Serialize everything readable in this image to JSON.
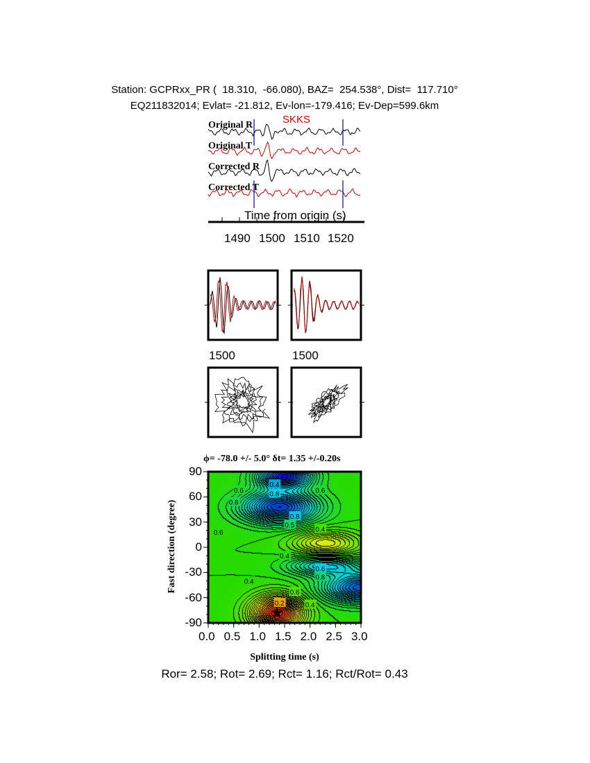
{
  "header": {
    "line1": "Station: GCPRxx_PR (  18.310,  -66.080), BAZ=  254.538°, Dist=  117.710°",
    "line2": "EQ211832014; Evlat= -21.812, Ev-lon=-179.416; Ev-Dep=599.6km"
  },
  "chart_data": [
    {
      "type": "line",
      "title": "SKKS",
      "xlabel": "Time from origin (s)",
      "xlim": [
        1481,
        1525
      ],
      "xticks": [
        "1490",
        "1500",
        "1510",
        "1520"
      ],
      "window_markers_s": [
        1494.2,
        1519.8
      ],
      "series": [
        {
          "name": "Original R",
          "color": "#000000"
        },
        {
          "name": "Original T",
          "color": "#cc0000"
        },
        {
          "name": "Corrected R",
          "color": "#000000"
        },
        {
          "name": "Corrected T",
          "color": "#cc0000"
        }
      ],
      "title_color": "#dd0000",
      "marker_color": "#0000cc"
    },
    {
      "type": "line",
      "panels": [
        "original-waveforms",
        "corrected-waveforms",
        "original-particle-motion",
        "corrected-particle-motion"
      ],
      "labels": [
        "1500",
        "1500"
      ]
    },
    {
      "type": "heatmap",
      "title": "ϕ= -78.0 +/- 5.0° δt= 1.35 +/-0.20s",
      "xlabel": "Splitting time (s)",
      "ylabel": "Fast direction (degree)",
      "xlim": [
        0,
        3
      ],
      "ylim": [
        -90,
        90
      ],
      "xticks": [
        "0.0",
        "0.5",
        "1.0",
        "1.5",
        "2.0",
        "2.5",
        "3.0"
      ],
      "yticks": [
        "90",
        "60",
        "30",
        "0",
        "-30",
        "-60",
        "-90"
      ],
      "best_fit": {
        "dt": 1.35,
        "phi": -78.0
      },
      "contour_labels": [
        {
          "text": "0.4",
          "dt": 1.3,
          "phi": 75
        },
        {
          "text": "0.6",
          "dt": 0.6,
          "phi": 68
        },
        {
          "text": "0.8",
          "dt": 1.3,
          "phi": 64
        },
        {
          "text": "0.6",
          "dt": 2.2,
          "phi": 68
        },
        {
          "text": "0.8",
          "dt": 0.5,
          "phi": 54
        },
        {
          "text": "0.8",
          "dt": 1.7,
          "phi": 37
        },
        {
          "text": "0.5",
          "dt": 1.6,
          "phi": 27
        },
        {
          "text": "0.4",
          "dt": 2.2,
          "phi": 22
        },
        {
          "text": "0.6",
          "dt": 0.2,
          "phi": 18
        },
        {
          "text": "0.4",
          "dt": 1.5,
          "phi": -10
        },
        {
          "text": "0.6",
          "dt": 2.2,
          "phi": -25
        },
        {
          "text": "0.8",
          "dt": 2.2,
          "phi": -35
        },
        {
          "text": "0.4",
          "dt": 0.8,
          "phi": -40
        },
        {
          "text": "0.6",
          "dt": 1.7,
          "phi": -53
        },
        {
          "text": "0.2",
          "dt": 1.4,
          "phi": -66
        },
        {
          "text": "0.4",
          "dt": 2.0,
          "phi": -68
        }
      ],
      "colormap": "rainbow (red low → blue high)"
    }
  ],
  "footer": "Ror= 2.58; Rot= 2.69; Rct= 1.16; Rct/Rot= 0.43"
}
